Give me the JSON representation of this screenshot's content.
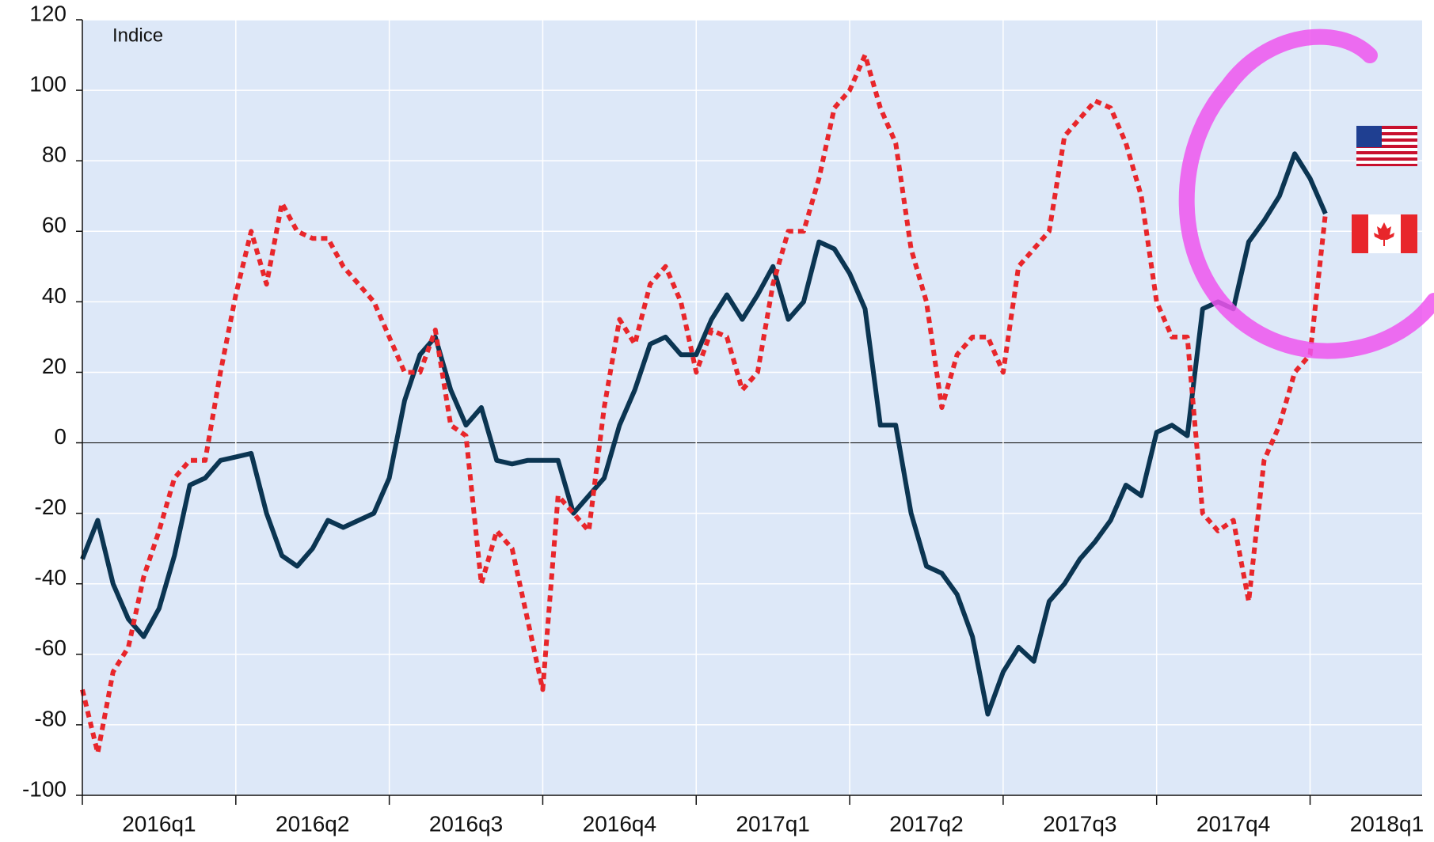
{
  "chart_data": {
    "type": "line",
    "annotation": "Indice",
    "categories": [
      "2016q1",
      "2016q2",
      "2016q3",
      "2016q4",
      "2017q1",
      "2017q2",
      "2017q3",
      "2017q4",
      "2018q1"
    ],
    "x": [
      0,
      0.1,
      0.2,
      0.3,
      0.4,
      0.5,
      0.6,
      0.7,
      0.8,
      0.9,
      1,
      1.1,
      1.2,
      1.3,
      1.4,
      1.5,
      1.6,
      1.7,
      1.8,
      1.9,
      2,
      2.1,
      2.2,
      2.3,
      2.4,
      2.5,
      2.6,
      2.7,
      2.8,
      2.9,
      3,
      3.1,
      3.2,
      3.3,
      3.4,
      3.5,
      3.6,
      3.7,
      3.8,
      3.9,
      4,
      4.1,
      4.2,
      4.3,
      4.4,
      4.5,
      4.6,
      4.7,
      4.8,
      4.9,
      5,
      5.1,
      5.2,
      5.3,
      5.4,
      5.5,
      5.6,
      5.7,
      5.8,
      5.9,
      6,
      6.1,
      6.2,
      6.3,
      6.4,
      6.5,
      6.6,
      6.7,
      6.8,
      6.9,
      7,
      7.1,
      7.2,
      7.3,
      7.4,
      7.5,
      7.6,
      7.7,
      7.8,
      7.9,
      8,
      8.1
    ],
    "xlim": [
      0,
      8.73
    ],
    "series": [
      {
        "color": "#0b3552",
        "style": "solid",
        "values": [
          -33,
          -22,
          -40,
          -50,
          -55,
          -47,
          -32,
          -12,
          -10,
          -5,
          -4,
          -3,
          -20,
          -32,
          -35,
          -30,
          -22,
          -24,
          -22,
          -20,
          -10,
          12,
          25,
          30,
          15,
          5,
          10,
          -5,
          -6,
          -5,
          -5,
          -5,
          -20,
          -15,
          -10,
          5,
          15,
          28,
          30,
          25,
          25,
          35,
          42,
          35,
          42,
          50,
          35,
          40,
          57,
          55,
          48,
          38,
          5,
          5,
          -20,
          -35,
          -37,
          -43,
          -55,
          -77,
          -65,
          -58,
          -62,
          -45,
          -40,
          -33,
          -28,
          -22,
          -12,
          -15,
          3,
          5,
          2,
          38,
          40,
          38,
          57,
          63,
          70,
          82,
          75,
          65
        ]
      },
      {
        "color": "#e8262b",
        "style": "dotted",
        "values": [
          -70,
          -88,
          -65,
          -58,
          -38,
          -25,
          -10,
          -5,
          -5,
          20,
          42,
          60,
          45,
          68,
          60,
          58,
          58,
          50,
          45,
          40,
          30,
          20,
          20,
          32,
          5,
          2,
          -40,
          -25,
          -30,
          -50,
          -70,
          -15,
          -20,
          -25,
          10,
          35,
          28,
          45,
          50,
          40,
          20,
          32,
          30,
          15,
          20,
          45,
          60,
          60,
          75,
          95,
          100,
          110,
          95,
          85,
          55,
          40,
          10,
          25,
          30,
          30,
          20,
          50,
          55,
          60,
          87,
          92,
          97,
          95,
          85,
          70,
          40,
          30,
          30,
          -20,
          -25,
          -22,
          -45,
          -5,
          5,
          20,
          25,
          65
        ]
      }
    ],
    "ylim": [
      -100,
      120
    ],
    "yticks": [
      -100,
      -80,
      -60,
      -40,
      -20,
      0,
      20,
      40,
      60,
      80,
      100,
      120
    ],
    "grid": true
  }
}
